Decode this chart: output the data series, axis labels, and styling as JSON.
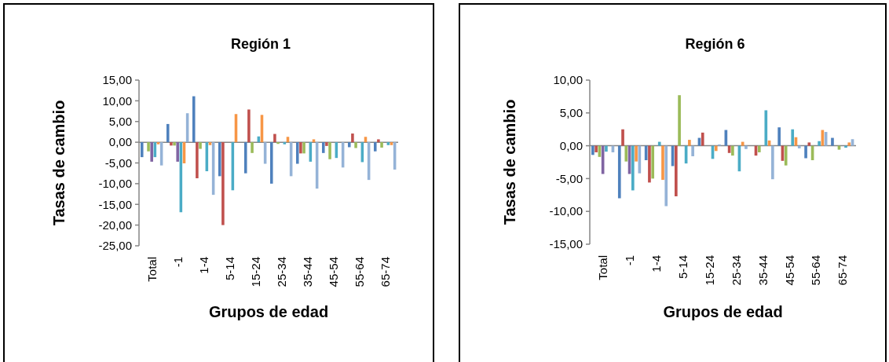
{
  "chart_data": [
    {
      "type": "bar",
      "title": "Región 1",
      "xlabel": "Grupos de edad",
      "ylabel": "Tasas de cambio",
      "categories": [
        "Total",
        "-1",
        "1-4",
        "5-14",
        "15-24",
        "25-34",
        "35-44",
        "45-54",
        "55-64",
        "65-74"
      ],
      "ylim": [
        -25,
        15
      ],
      "yticks": [
        {
          "value": -25,
          "label": "-25,00"
        },
        {
          "value": -20,
          "label": "-20,00"
        },
        {
          "value": -15,
          "label": "-15,00"
        },
        {
          "value": -10,
          "label": "-10,00"
        },
        {
          "value": -5,
          "label": "-5,00"
        },
        {
          "value": 0,
          "label": "0,00"
        },
        {
          "value": 5,
          "label": "5,00"
        },
        {
          "value": 10,
          "label": "10,00"
        },
        {
          "value": 15,
          "label": "15,00"
        }
      ],
      "series": [
        {
          "color": "#4f81bd",
          "values": [
            -3.6,
            4.4,
            11.1,
            -8.2,
            -7.5,
            -10.0,
            -5.2,
            -2.6,
            -1.2,
            -2.2
          ]
        },
        {
          "color": "#c0504d",
          "values": [
            null,
            -0.8,
            -8.7,
            -20.0,
            7.9,
            2.0,
            -2.7,
            -0.9,
            2.1,
            0.7
          ]
        },
        {
          "color": "#9bbb59",
          "values": [
            -2.2,
            -0.8,
            -1.6,
            null,
            -2.6,
            -0.4,
            -2.7,
            -4.1,
            -1.4,
            -1.3
          ]
        },
        {
          "color": "#8064a2",
          "values": [
            -4.7,
            -4.7,
            null,
            null,
            null,
            null,
            null,
            null,
            null,
            null
          ]
        },
        {
          "color": "#4bacc6",
          "values": [
            -3.6,
            -16.9,
            -7.0,
            -11.6,
            1.4,
            -0.5,
            -4.7,
            -3.8,
            -4.8,
            -0.7
          ]
        },
        {
          "color": "#f79646",
          "values": [
            -0.5,
            -5.1,
            -0.7,
            6.8,
            6.6,
            1.3,
            0.7,
            null,
            1.3,
            -0.7
          ]
        },
        {
          "color": "#95b3d7",
          "values": [
            -5.6,
            7.0,
            -12.7,
            null,
            -5.2,
            -8.2,
            -11.2,
            -6.1,
            -9.1,
            -6.6
          ]
        }
      ]
    },
    {
      "type": "bar",
      "title": "Región 6",
      "xlabel": "Grupos de edad",
      "ylabel": "Tasas de cambio",
      "categories": [
        "Total",
        "-1",
        "1-4",
        "5-14",
        "15-24",
        "25-34",
        "35-44",
        "45-54",
        "55-64",
        "65-74"
      ],
      "ylim": [
        -15,
        10
      ],
      "yticks": [
        {
          "value": -15,
          "label": "-15,00"
        },
        {
          "value": -10,
          "label": "-10,00"
        },
        {
          "value": -5,
          "label": "-5,00"
        },
        {
          "value": 0,
          "label": "0,00"
        },
        {
          "value": 5,
          "label": "5,00"
        },
        {
          "value": 10,
          "label": "10,00"
        }
      ],
      "series": [
        {
          "color": "#4f81bd",
          "values": [
            -1.4,
            -8.0,
            -2.2,
            -3.1,
            1.2,
            2.4,
            null,
            2.8,
            -1.9,
            1.2
          ]
        },
        {
          "color": "#c0504d",
          "values": [
            -1.0,
            2.5,
            -5.6,
            -7.7,
            2.0,
            -1.1,
            -1.5,
            -2.3,
            0.5,
            null
          ]
        },
        {
          "color": "#9bbb59",
          "values": [
            -1.7,
            -2.4,
            -5.0,
            7.7,
            null,
            -1.5,
            -1.0,
            -3.0,
            -2.2,
            -0.6
          ]
        },
        {
          "color": "#8064a2",
          "values": [
            -4.3,
            -4.3,
            null,
            null,
            null,
            null,
            null,
            null,
            null,
            null
          ]
        },
        {
          "color": "#4bacc6",
          "values": [
            -0.9,
            -6.8,
            0.6,
            -2.7,
            -2.0,
            -3.9,
            5.4,
            2.5,
            0.7,
            -0.3
          ]
        },
        {
          "color": "#f79646",
          "values": [
            null,
            -2.4,
            -5.2,
            0.9,
            -0.8,
            0.6,
            0.8,
            1.3,
            2.4,
            0.5
          ]
        },
        {
          "color": "#95b3d7",
          "values": [
            -1.0,
            -4.2,
            -9.2,
            -1.6,
            0.2,
            -0.5,
            -5.1,
            -0.4,
            2.1,
            1.0
          ]
        }
      ]
    }
  ]
}
